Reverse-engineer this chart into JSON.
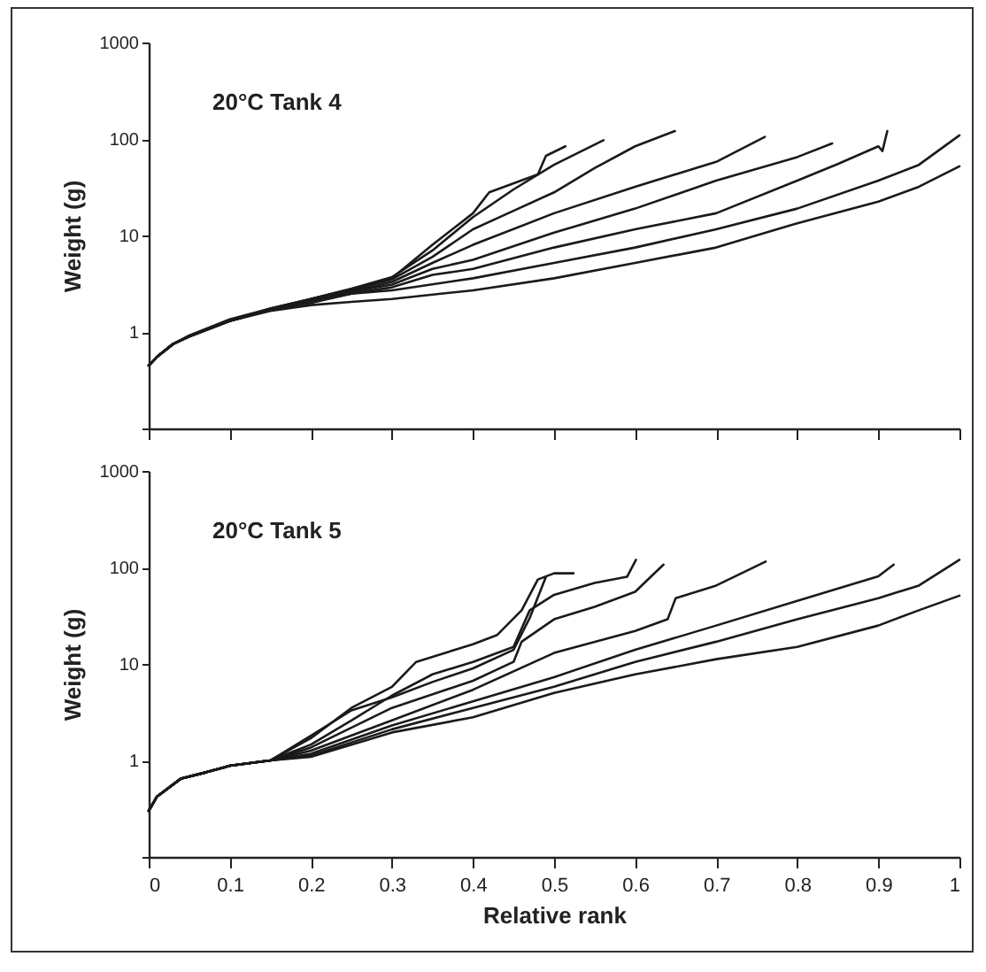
{
  "chart_data": [
    {
      "type": "line",
      "title": "20°C  Tank 4",
      "ylabel": "Weight (g)",
      "log": "y",
      "xlim": [
        0,
        1
      ],
      "xticks": [
        0,
        0.1,
        0.2,
        0.3,
        0.4,
        0.5,
        0.6,
        0.7,
        0.8,
        0.9,
        1
      ],
      "ylim": [
        0.1,
        1000
      ],
      "yticks": [
        {
          "value": 0.1,
          "label": null
        },
        1,
        10,
        100,
        1000
      ],
      "tick_labels": "y",
      "line_style": "solid",
      "series": [
        {
          "color": "#1a1a1a",
          "x": [
            0,
            0.01,
            0.03,
            0.05,
            0.1,
            0.15,
            0.2,
            0.25,
            0.3,
            0.35,
            0.4,
            0.42,
            0.48,
            0.49,
            0.514
          ],
          "values": [
            0.45,
            0.55,
            0.75,
            0.92,
            1.35,
            1.75,
            2.2,
            2.8,
            3.6,
            8,
            17,
            28,
            43,
            67,
            84
          ]
        },
        {
          "color": "#1a1a1a",
          "x": [
            0,
            0.01,
            0.03,
            0.05,
            0.1,
            0.15,
            0.2,
            0.25,
            0.3,
            0.35,
            0.4,
            0.45,
            0.5,
            0.561
          ],
          "values": [
            0.45,
            0.55,
            0.75,
            0.9,
            1.3,
            1.75,
            2.2,
            2.8,
            3.7,
            7,
            15.5,
            30,
            54,
            97
          ]
        },
        {
          "color": "#1a1a1a",
          "x": [
            0,
            0.01,
            0.03,
            0.05,
            0.1,
            0.15,
            0.2,
            0.25,
            0.3,
            0.35,
            0.4,
            0.45,
            0.5,
            0.55,
            0.6,
            0.649
          ],
          "values": [
            0.45,
            0.55,
            0.75,
            0.9,
            1.3,
            1.7,
            2.2,
            2.7,
            3.5,
            6,
            11.6,
            18,
            28,
            50,
            84,
            121
          ]
        },
        {
          "color": "#1a1a1a",
          "x": [
            0,
            0.01,
            0.03,
            0.05,
            0.1,
            0.15,
            0.2,
            0.25,
            0.3,
            0.35,
            0.4,
            0.5,
            0.6,
            0.7,
            0.76
          ],
          "values": [
            0.45,
            0.55,
            0.75,
            0.9,
            1.3,
            1.7,
            2.1,
            2.6,
            3.3,
            5.2,
            8,
            17,
            32,
            58,
            105
          ]
        },
        {
          "color": "#1a1a1a",
          "x": [
            0,
            0.01,
            0.03,
            0.05,
            0.1,
            0.15,
            0.2,
            0.25,
            0.3,
            0.35,
            0.4,
            0.5,
            0.6,
            0.7,
            0.8,
            0.843
          ],
          "values": [
            0.45,
            0.55,
            0.75,
            0.9,
            1.3,
            1.7,
            2.1,
            2.6,
            3.1,
            4.5,
            5.6,
            10.7,
            19,
            37,
            65,
            90
          ]
        },
        {
          "color": "#1a1a1a",
          "x": [
            0,
            0.01,
            0.03,
            0.05,
            0.1,
            0.15,
            0.2,
            0.25,
            0.3,
            0.35,
            0.4,
            0.5,
            0.6,
            0.7,
            0.8,
            0.85,
            0.9,
            0.905,
            0.911
          ],
          "values": [
            0.45,
            0.55,
            0.75,
            0.9,
            1.3,
            1.7,
            2.1,
            2.5,
            2.9,
            3.9,
            4.5,
            7.5,
            11.6,
            17,
            37,
            55,
            84,
            75,
            121
          ]
        },
        {
          "color": "#1a1a1a",
          "x": [
            0,
            0.01,
            0.03,
            0.05,
            0.1,
            0.15,
            0.2,
            0.25,
            0.3,
            0.4,
            0.5,
            0.6,
            0.7,
            0.8,
            0.9,
            0.95,
            1
          ],
          "values": [
            0.45,
            0.55,
            0.75,
            0.9,
            1.3,
            1.7,
            2.0,
            2.5,
            2.7,
            3.6,
            5.2,
            7.5,
            11.6,
            19,
            37,
            54,
            109
          ]
        },
        {
          "color": "#1a1a1a",
          "x": [
            0,
            0.01,
            0.03,
            0.05,
            0.1,
            0.15,
            0.2,
            0.25,
            0.3,
            0.4,
            0.5,
            0.6,
            0.7,
            0.8,
            0.9,
            0.95,
            1
          ],
          "values": [
            0.45,
            0.55,
            0.75,
            0.9,
            1.3,
            1.65,
            1.9,
            2.05,
            2.2,
            2.7,
            3.6,
            5.2,
            7.5,
            13.4,
            22.4,
            32,
            52
          ]
        }
      ]
    },
    {
      "type": "line",
      "title": "20°C  Tank 5",
      "xlabel": "Relative rank",
      "ylabel": "Weight (g)",
      "log": "y",
      "xlim": [
        0,
        1
      ],
      "xticks": [
        0,
        0.1,
        0.2,
        0.3,
        0.4,
        0.5,
        0.6,
        0.7,
        0.8,
        0.9,
        1
      ],
      "ylim": [
        0.1,
        1000
      ],
      "yticks": [
        {
          "value": 0.1,
          "label": null
        },
        1,
        10,
        100,
        1000
      ],
      "line_style": "solid",
      "series": [
        {
          "color": "#1a1a1a",
          "x": [
            0,
            0.01,
            0.04,
            0.07,
            0.1,
            0.15,
            0.2,
            0.25,
            0.3,
            0.35,
            0.4,
            0.45,
            0.47,
            0.49
          ],
          "values": [
            0.3,
            0.42,
            0.65,
            0.75,
            0.88,
            1.0,
            1.8,
            3.3,
            4.5,
            6.5,
            9,
            14,
            30,
            80
          ]
        },
        {
          "color": "#1a1a1a",
          "x": [
            0,
            0.01,
            0.04,
            0.07,
            0.1,
            0.15,
            0.2,
            0.25,
            0.3,
            0.33,
            0.4,
            0.43,
            0.46,
            0.48,
            0.5,
            0.524
          ],
          "values": [
            0.3,
            0.42,
            0.65,
            0.75,
            0.88,
            1.0,
            1.7,
            3.5,
            5.8,
            10.5,
            16,
            20,
            36,
            75,
            87,
            87
          ]
        },
        {
          "color": "#1a1a1a",
          "x": [
            0,
            0.01,
            0.04,
            0.07,
            0.1,
            0.15,
            0.2,
            0.25,
            0.3,
            0.35,
            0.4,
            0.45,
            0.47,
            0.5,
            0.55,
            0.59,
            0.601
          ],
          "values": [
            0.3,
            0.42,
            0.65,
            0.75,
            0.88,
            1.0,
            1.46,
            2.6,
            4.7,
            7.8,
            10.5,
            15,
            36,
            52,
            69,
            80,
            120
          ]
        },
        {
          "color": "#1a1a1a",
          "x": [
            0,
            0.01,
            0.04,
            0.07,
            0.1,
            0.15,
            0.2,
            0.3,
            0.4,
            0.45,
            0.46,
            0.5,
            0.55,
            0.6,
            0.635
          ],
          "values": [
            0.3,
            0.42,
            0.65,
            0.75,
            0.88,
            1.0,
            1.36,
            3.5,
            6.7,
            10.5,
            17,
            29,
            39,
            56,
            107
          ]
        },
        {
          "color": "#1a1a1a",
          "x": [
            0,
            0.01,
            0.04,
            0.07,
            0.1,
            0.15,
            0.2,
            0.3,
            0.4,
            0.5,
            0.6,
            0.64,
            0.65,
            0.7,
            0.761
          ],
          "values": [
            0.3,
            0.42,
            0.65,
            0.75,
            0.88,
            1.0,
            1.26,
            2.6,
            5.4,
            13,
            22,
            29,
            48,
            65,
            115
          ]
        },
        {
          "color": "#1a1a1a",
          "x": [
            0,
            0.01,
            0.04,
            0.07,
            0.1,
            0.15,
            0.2,
            0.3,
            0.4,
            0.5,
            0.6,
            0.7,
            0.8,
            0.9,
            0.919
          ],
          "values": [
            0.3,
            0.42,
            0.65,
            0.75,
            0.88,
            1.0,
            1.17,
            2.3,
            4.1,
            7.3,
            14,
            25,
            45,
            81,
            107
          ]
        },
        {
          "color": "#1a1a1a",
          "x": [
            0,
            0.01,
            0.04,
            0.07,
            0.1,
            0.15,
            0.2,
            0.3,
            0.4,
            0.5,
            0.6,
            0.7,
            0.8,
            0.9,
            0.95,
            1
          ],
          "values": [
            0.3,
            0.42,
            0.65,
            0.75,
            0.88,
            1.0,
            1.12,
            2.1,
            3.5,
            5.8,
            10.5,
            17,
            29,
            48,
            65,
            120
          ]
        },
        {
          "color": "#1a1a1a",
          "x": [
            0,
            0.01,
            0.04,
            0.07,
            0.1,
            0.15,
            0.2,
            0.3,
            0.4,
            0.5,
            0.6,
            0.7,
            0.8,
            0.9,
            0.95,
            1
          ],
          "values": [
            0.3,
            0.42,
            0.65,
            0.75,
            0.88,
            1.0,
            1.09,
            1.95,
            2.8,
            5.0,
            7.8,
            11.2,
            15,
            25,
            36,
            51
          ]
        }
      ]
    }
  ]
}
